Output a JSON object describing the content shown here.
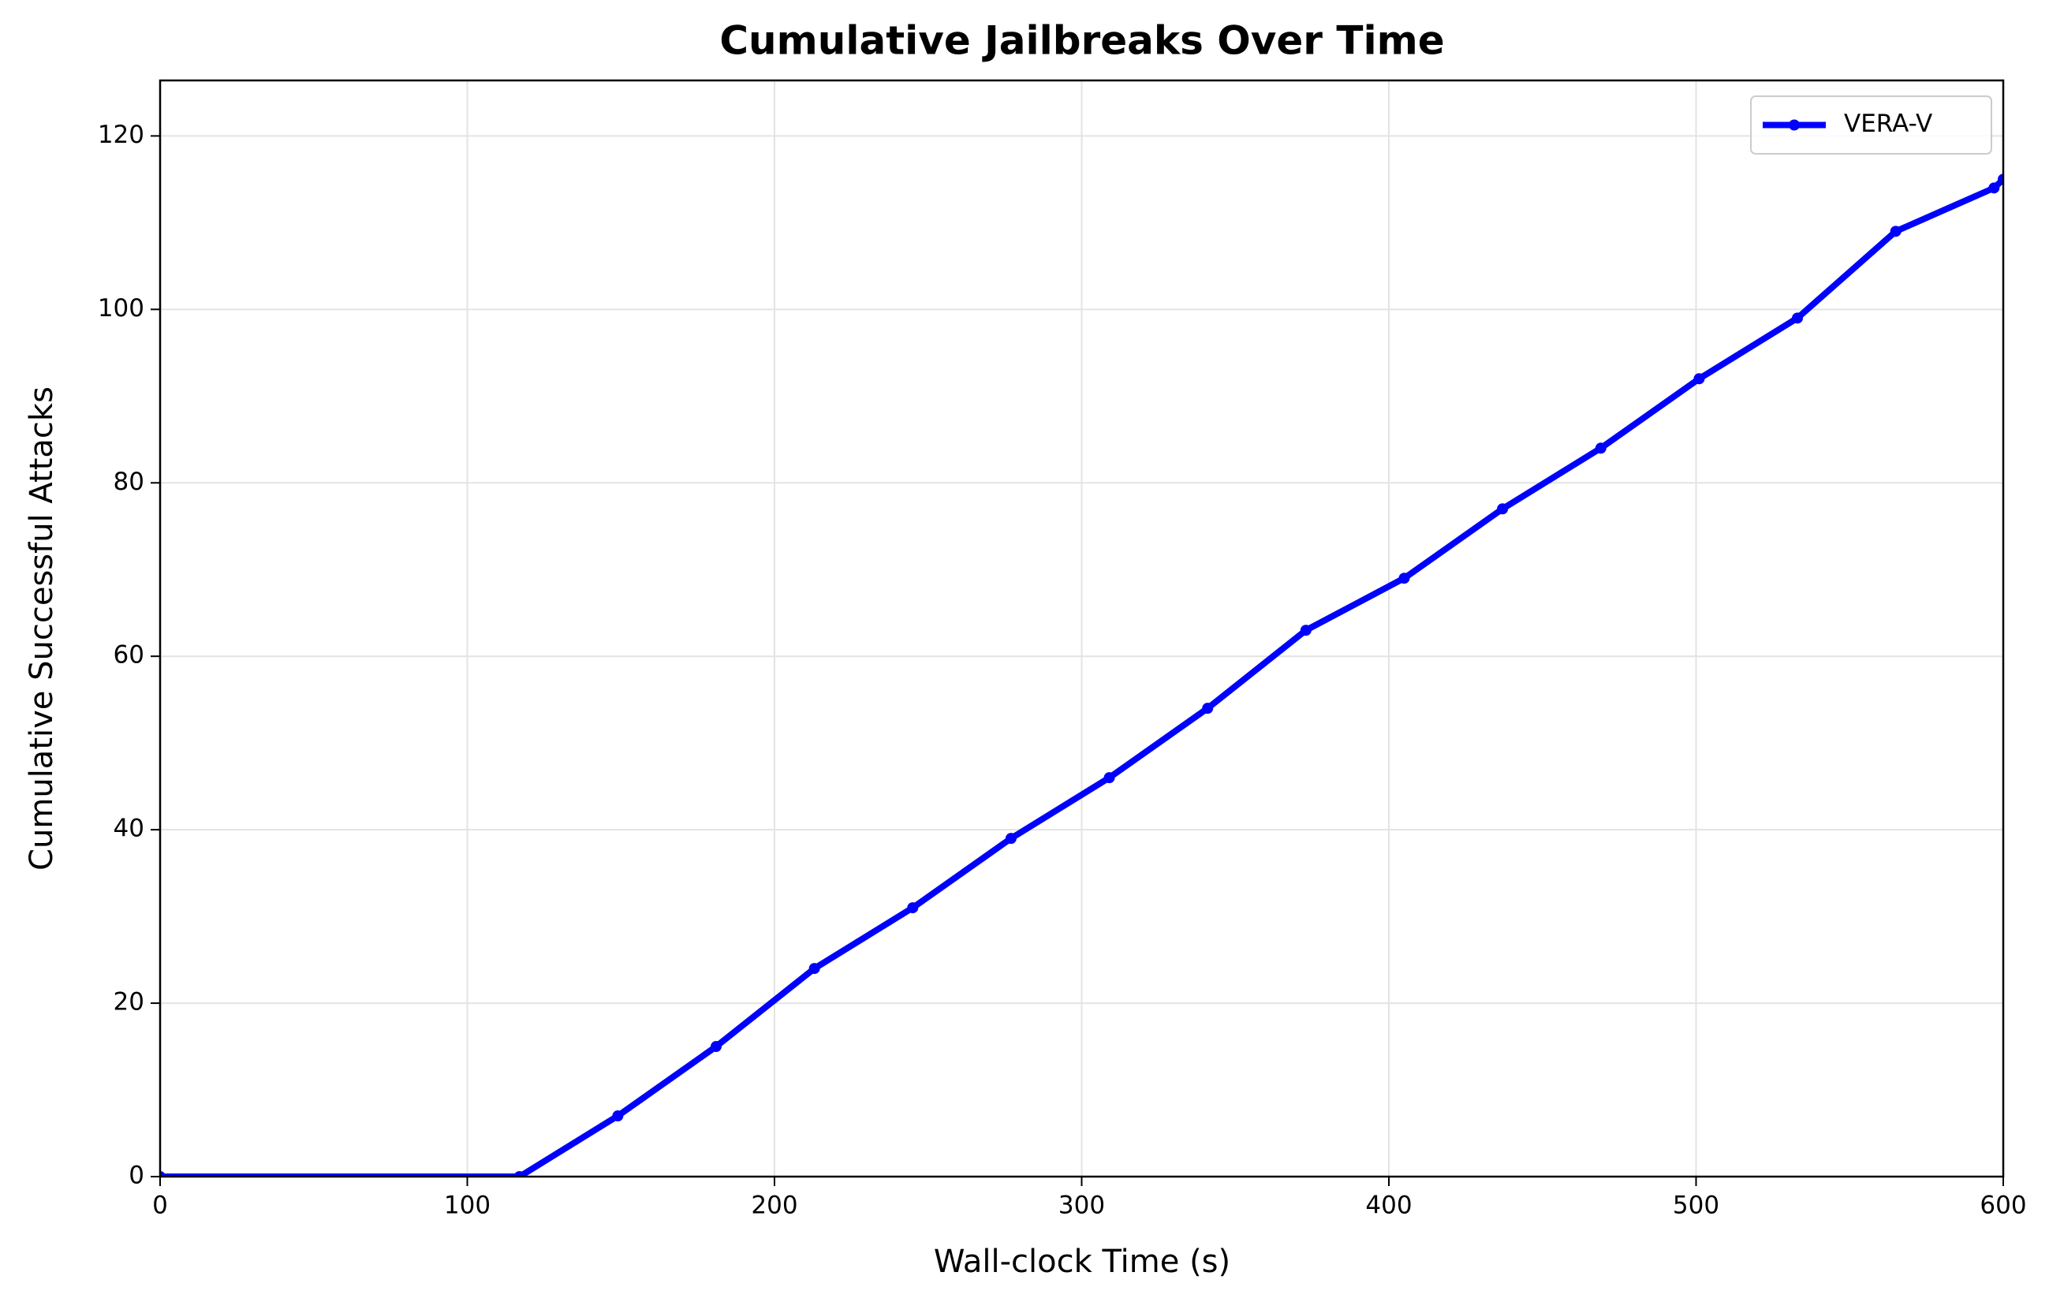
{
  "chart_data": {
    "type": "line",
    "title": "Cumulative Jailbreaks Over Time",
    "x_label": "Wall-clock Time (s)",
    "y_label": "Cumulative Successful Attacks",
    "x": [
      0,
      117,
      149,
      181,
      213,
      245,
      277,
      309,
      341,
      373,
      405,
      437,
      469,
      501,
      533,
      565,
      597,
      600
    ],
    "series": [
      {
        "name": "VERA-V",
        "color": "#0000ff",
        "values": [
          0,
          0,
          7,
          15,
          24,
          31,
          39,
          46,
          54,
          63,
          69,
          77,
          84,
          92,
          99,
          109,
          114,
          115
        ]
      }
    ],
    "xlim": [
      0,
      600
    ],
    "ylim": [
      0,
      126.4
    ],
    "xticks": [
      0,
      100,
      200,
      300,
      400,
      500,
      600
    ],
    "yticks": [
      0,
      20,
      40,
      60,
      80,
      100,
      120
    ],
    "grid": true,
    "legend": "upper right"
  }
}
